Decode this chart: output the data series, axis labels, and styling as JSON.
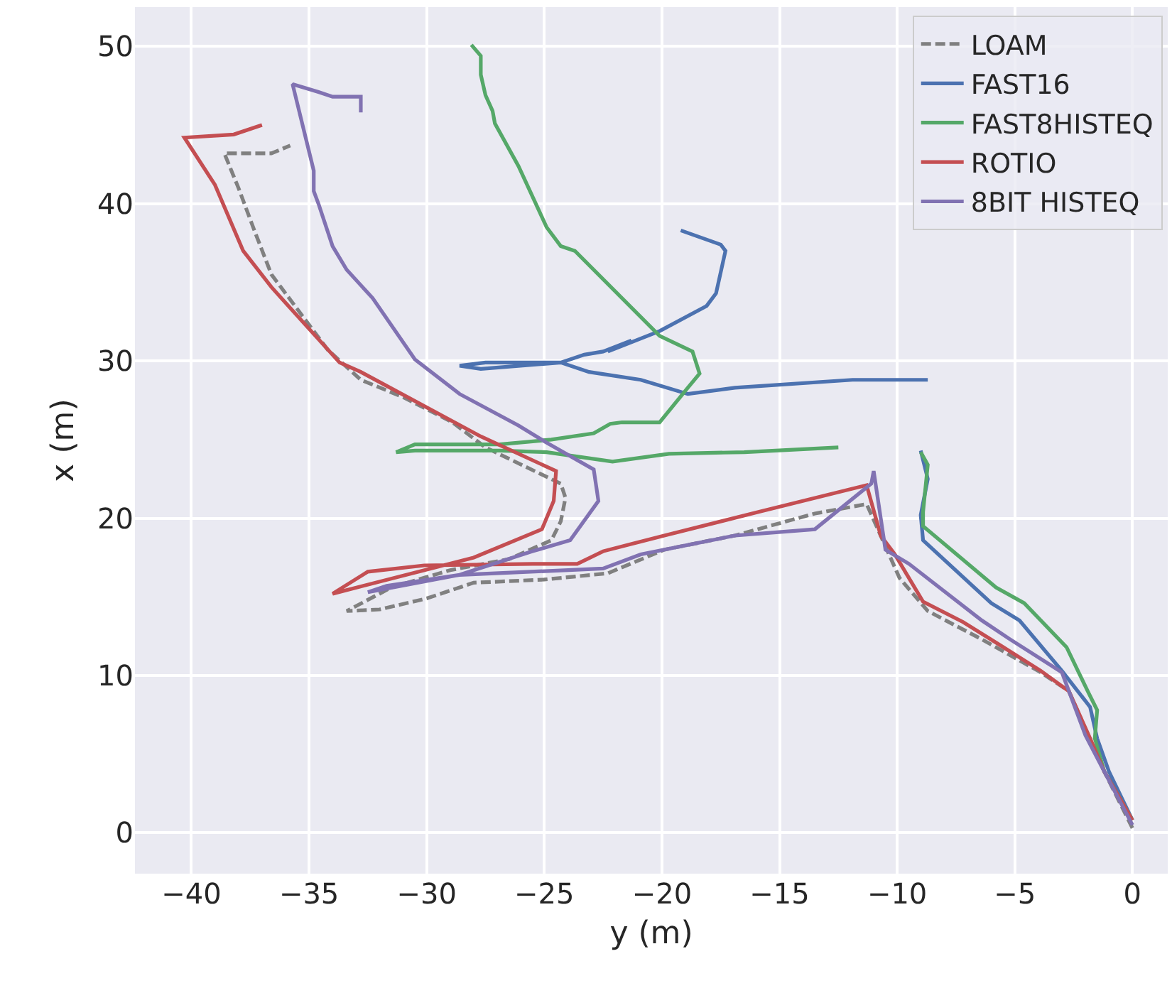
{
  "chart_data": {
    "type": "line",
    "xlabel": "y (m)",
    "ylabel": "x (m)",
    "xlim": [
      -42.4,
      1.5
    ],
    "ylim": [
      -2.6,
      52.5
    ],
    "xticks": [
      {
        "value": -40,
        "label": "−40"
      },
      {
        "value": -35,
        "label": "−35"
      },
      {
        "value": -30,
        "label": "−30"
      },
      {
        "value": -25,
        "label": "−25"
      },
      {
        "value": -20,
        "label": "−20"
      },
      {
        "value": -15,
        "label": "−15"
      },
      {
        "value": -10,
        "label": "−10"
      },
      {
        "value": -5,
        "label": "−5"
      },
      0
    ],
    "yticks": [
      0,
      10,
      20,
      30,
      40,
      50
    ],
    "grid": true,
    "legend": "top right",
    "marker": "none",
    "series": [
      {
        "name": "LOAM",
        "color": "#808080",
        "line_style": "dashed",
        "x": [
          0,
          -1.2,
          -2,
          -2.7,
          -3.9,
          -6.4,
          -8.7,
          -9.9,
          -11.3,
          -13.5,
          -16.9,
          -19.9,
          -22.3,
          -25,
          -28,
          -30,
          -32,
          -33.4,
          -31.5,
          -29,
          -26.5,
          -24.7,
          -24.3,
          -24.1,
          -24.3,
          -27.5,
          -28.9,
          -31,
          -32.8,
          -34.2,
          -35.4,
          -36.6,
          -37.3,
          -38,
          -38.6,
          -36.6,
          -35.8
        ],
        "values": [
          0.3,
          3.9,
          6.6,
          9,
          10.2,
          12.3,
          14.1,
          16.2,
          20.9,
          20.3,
          18.9,
          18,
          16.5,
          16.1,
          15.9,
          14.9,
          14.2,
          14.1,
          15.6,
          16.7,
          17.4,
          18.6,
          19.8,
          21.3,
          22.2,
          24.5,
          26.1,
          27.7,
          28.8,
          30.7,
          33.1,
          35.5,
          38.2,
          41,
          43.2,
          43.2,
          43.7
        ]
      },
      {
        "name": "FAST16",
        "color": "#4c72b0",
        "line_style": "solid",
        "x": [
          0,
          -1,
          -1.5,
          -1.8,
          -3,
          -4.8,
          -6,
          -8.9,
          -9,
          -8.7,
          -9,
          null,
          -8.7,
          -11.9,
          -16.9,
          -18.9,
          -20.9,
          -23.1,
          -24.3,
          -27.5,
          -28.6,
          -27.7,
          -24.3,
          -23.3,
          -22.5,
          -21.3,
          -22.3,
          -20.1,
          -18.1,
          -17.7,
          -17.3,
          -17.5,
          -19.2
        ],
        "values": [
          0.8,
          3.9,
          6,
          8,
          10.3,
          13.5,
          14.6,
          18.6,
          20.2,
          22.5,
          24.3,
          null,
          28.8,
          28.8,
          28.3,
          27.9,
          28.8,
          29.3,
          29.9,
          29.9,
          29.7,
          29.5,
          29.9,
          30.4,
          30.6,
          31.3,
          30.6,
          31.9,
          33.5,
          34.3,
          37,
          37.4,
          38.3
        ]
      },
      {
        "name": "FAST8HISTEQ",
        "color": "#55a868",
        "line_style": "solid",
        "x": [
          0,
          -1.2,
          -1.6,
          -1.5,
          -1.9,
          -2.8,
          -4.6,
          -5.8,
          -8.9,
          -8.9,
          -8.7,
          -9,
          null,
          -12.5,
          -16.5,
          -19.7,
          -22.1,
          -24.9,
          -26.9,
          -30.5,
          -31.3,
          -30.5,
          -26.9,
          -24.7,
          -22.9,
          -22.2,
          -21.7,
          -20.1,
          -18.9,
          -18.4,
          -18.7,
          -20.1,
          -23.7,
          -24.3,
          -24.9,
          -26.1,
          -27.1,
          -27.2,
          -27.5,
          -27.7,
          -27.7,
          -28.1
        ],
        "values": [
          0.8,
          3.9,
          6,
          7.8,
          9,
          11.8,
          14.6,
          15.6,
          19.5,
          20.4,
          23.4,
          24.2,
          null,
          24.5,
          24.2,
          24.1,
          23.6,
          24.2,
          24.3,
          24.3,
          24.2,
          24.7,
          24.7,
          25,
          25.4,
          26,
          26.1,
          26.1,
          28.3,
          29.2,
          30.6,
          31.6,
          37,
          37.3,
          38.5,
          42.4,
          45.1,
          45.9,
          46.9,
          48.2,
          49.4,
          50.1
        ]
      },
      {
        "name": "ROTIO",
        "color": "#c44e52",
        "line_style": "solid",
        "x": [
          0,
          -1.2,
          -1.8,
          -2.7,
          -3.9,
          -5.7,
          -7.2,
          -8.9,
          -10.1,
          -10.7,
          -11.3,
          -15.9,
          -19.9,
          -22.5,
          -23.6,
          -25.5,
          -30.1,
          -32.5,
          -34,
          -28,
          -25.1,
          -24.6,
          -24.5,
          -27.7,
          -32.8,
          -33.7,
          -36,
          -36.6,
          -37.8,
          -39,
          -40.3,
          -38.2,
          -37
        ],
        "values": [
          0.8,
          3.9,
          6,
          9,
          10.3,
          12,
          13.4,
          14.7,
          17.7,
          18.9,
          22.1,
          20.4,
          18.9,
          17.9,
          17.1,
          17.1,
          17,
          16.6,
          15.2,
          17.5,
          19.3,
          21.1,
          23,
          25.2,
          29.3,
          29.9,
          33.7,
          34.7,
          37,
          41.2,
          44.2,
          44.4,
          45
        ]
      },
      {
        "name": "8BIT HISTEQ",
        "color": "#8172b2",
        "line_style": "solid",
        "x": [
          0,
          -1.2,
          -2,
          -3,
          -5.2,
          -6.4,
          -9.5,
          -10.5,
          -11,
          -11.1,
          -13.5,
          -16.9,
          -20.9,
          -22.5,
          -28.6,
          -31.7,
          -32.5,
          -28.6,
          -25.5,
          -23.9,
          -22.7,
          -22.9,
          -24.9,
          -26.1,
          -28.6,
          -30.5,
          -32.3,
          -33.4,
          -34,
          -34.6,
          -34.8,
          -34.8,
          -35.7,
          -34.6,
          -34,
          -32.8,
          -32.8
        ],
        "values": [
          0.5,
          3.9,
          6.2,
          10.2,
          12.3,
          13.5,
          17.1,
          18,
          23,
          22.2,
          19.3,
          18.9,
          17.7,
          16.8,
          16.4,
          15.7,
          15.3,
          16.4,
          17.9,
          18.6,
          21.1,
          23.1,
          24.8,
          25.9,
          27.9,
          30.1,
          34,
          35.8,
          37.3,
          40,
          40.8,
          42.1,
          47.6,
          47.1,
          46.8,
          46.8,
          45.8
        ]
      }
    ]
  }
}
